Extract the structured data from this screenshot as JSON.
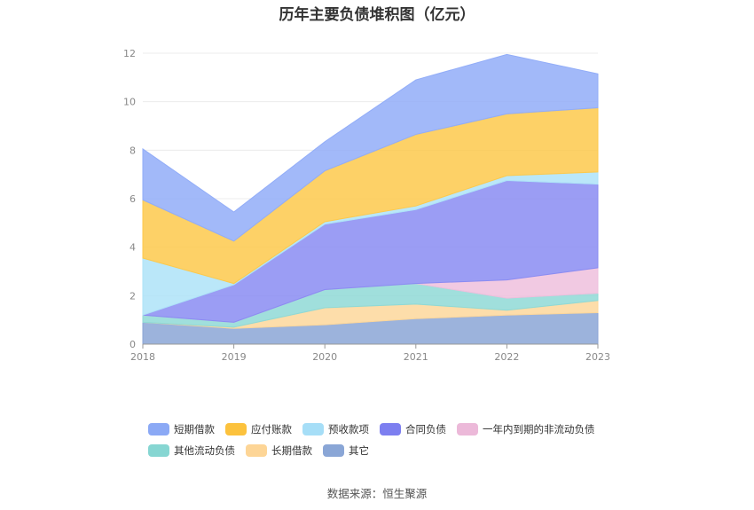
{
  "chart_data": {
    "type": "area",
    "stacked": true,
    "title": "历年主要负债堆积图（亿元）",
    "x": [
      "2018",
      "2019",
      "2020",
      "2021",
      "2022",
      "2023"
    ],
    "ylim": [
      0,
      12
    ],
    "yticks": [
      "0",
      "2",
      "4",
      "6",
      "8",
      "10",
      "12"
    ],
    "grid": true,
    "legend_position": "bottom",
    "series": [
      {
        "name": "其它",
        "color": "#8ba6d6",
        "values": [
          0.9,
          0.65,
          0.8,
          1.05,
          1.2,
          1.3
        ]
      },
      {
        "name": "长期借款",
        "color": "#fdd79b",
        "values": [
          0.0,
          0.05,
          0.7,
          0.6,
          0.2,
          0.5
        ]
      },
      {
        "name": "其他流动负债",
        "color": "#8fd9d6",
        "values": [
          0.3,
          0.2,
          0.75,
          0.85,
          0.5,
          0.3
        ]
      },
      {
        "name": "一年内到期的非流动负债",
        "color": "#eec0dd",
        "values": [
          0.0,
          0.0,
          0.0,
          0.0,
          0.75,
          1.05
        ]
      },
      {
        "name": "合同负债",
        "color": "#8a8cf2",
        "values": [
          0.0,
          1.55,
          2.7,
          3.05,
          4.1,
          3.45
        ]
      },
      {
        "name": "预收款项",
        "color": "#aee3f8",
        "values": [
          2.35,
          0.05,
          0.1,
          0.15,
          0.2,
          0.5
        ]
      },
      {
        "name": "应付账款",
        "color": "#fdc94c",
        "values": [
          2.4,
          1.75,
          2.1,
          2.95,
          2.55,
          2.65
        ]
      },
      {
        "name": "短期借款",
        "color": "#92adf8",
        "values": [
          2.1,
          1.2,
          1.2,
          2.25,
          2.45,
          1.4
        ]
      }
    ]
  },
  "legend": {
    "row1": [
      {
        "label": "短期借款",
        "color": "#8ba9f5"
      },
      {
        "label": "应付账款",
        "color": "#fcc23d"
      },
      {
        "label": "预收款项",
        "color": "#a6def7"
      },
      {
        "label": "合同负债",
        "color": "#7d7ff0"
      },
      {
        "label": "一年内到期的非流动负债",
        "color": "#ecb9d9"
      }
    ],
    "row2": [
      {
        "label": "其他流动负债",
        "color": "#86d6d2"
      },
      {
        "label": "长期借款",
        "color": "#fdd596"
      },
      {
        "label": "其它",
        "color": "#8aa6d6"
      }
    ]
  },
  "source": "数据来源：恒生聚源"
}
